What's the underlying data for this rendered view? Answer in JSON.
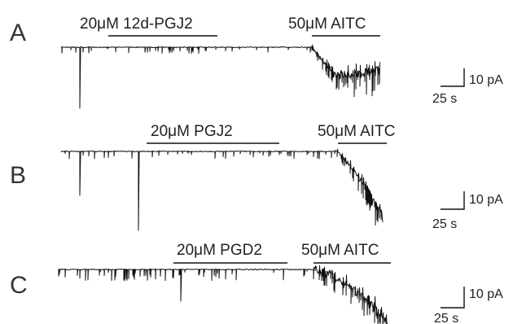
{
  "panels": [
    {
      "letter": "A",
      "drug_label": "20μM 12d-PGJ2",
      "aitc_label": "50μM AITC",
      "scale_current": "10 pA",
      "scale_time": "25 s"
    },
    {
      "letter": "B",
      "drug_label": "20μM PGJ2",
      "aitc_label": "50μM AITC",
      "scale_current": "10 pA",
      "scale_time": "25 s"
    },
    {
      "letter": "C",
      "drug_label": "20μM PGD2",
      "aitc_label": "50μM AITC",
      "scale_current": "10 pA",
      "scale_time": "25 s"
    }
  ],
  "colors": {
    "trace": "#111111",
    "text": "#222222",
    "background": "#ffffff"
  }
}
